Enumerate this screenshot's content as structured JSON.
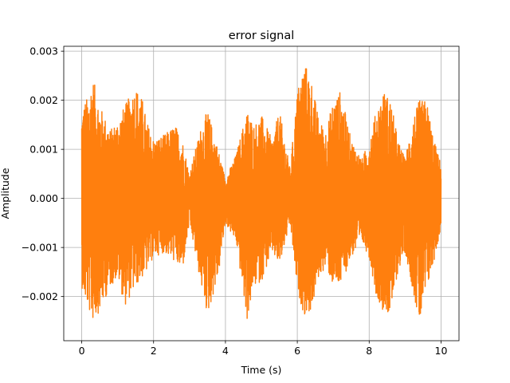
{
  "chart_data": {
    "type": "line",
    "title": "error signal",
    "xlabel": "Time (s)",
    "ylabel": "Amplitude",
    "xlim": [
      -0.5,
      10.5
    ],
    "ylim": [
      -0.0029,
      0.0031
    ],
    "grid": true,
    "x_ticks": [
      0,
      2,
      4,
      6,
      8,
      10
    ],
    "x_tick_labels": [
      "0",
      "2",
      "4",
      "6",
      "8",
      "10"
    ],
    "y_ticks": [
      -0.002,
      -0.001,
      0.0,
      0.001,
      0.002,
      0.003
    ],
    "y_tick_labels": [
      "−0.002",
      "−0.001",
      "0.000",
      "0.001",
      "0.002",
      "0.003"
    ],
    "series": [
      {
        "color": "#ff7f0e",
        "x_range": [
          0,
          10
        ],
        "envelope": {
          "x": [
            0,
            0.1,
            0.2,
            0.3,
            0.5,
            0.8,
            1.0,
            1.2,
            1.5,
            1.7,
            1.8,
            2.0,
            2.3,
            2.6,
            2.8,
            3.0,
            3.3,
            3.5,
            3.8,
            4.0,
            4.3,
            4.6,
            4.8,
            5.0,
            5.3,
            5.5,
            5.8,
            6.0,
            6.2,
            6.4,
            6.6,
            6.8,
            7.0,
            7.2,
            7.5,
            7.8,
            8.0,
            8.2,
            8.4,
            8.6,
            8.8,
            9.0,
            9.2,
            9.4,
            9.6,
            9.8,
            10.0
          ],
          "upper": [
            0.0018,
            0.002,
            0.0021,
            0.0025,
            0.0019,
            0.0014,
            0.0016,
            0.0019,
            0.0023,
            0.002,
            0.0016,
            0.0012,
            0.0013,
            0.0015,
            0.0012,
            0.0005,
            0.0014,
            0.0018,
            0.001,
            0.0004,
            0.0009,
            0.0018,
            0.0015,
            0.0017,
            0.0012,
            0.0018,
            0.0006,
            0.0022,
            0.0028,
            0.0024,
            0.0016,
            0.0014,
            0.002,
            0.0022,
            0.0012,
            0.0008,
            0.0012,
            0.0018,
            0.0022,
            0.002,
            0.0012,
            0.0008,
            0.0016,
            0.002,
            0.002,
            0.0012,
            0.0007
          ],
          "lower": [
            -0.0018,
            -0.0021,
            -0.0023,
            -0.0025,
            -0.0023,
            -0.0018,
            -0.0016,
            -0.0022,
            -0.0018,
            -0.0016,
            -0.0015,
            -0.0012,
            -0.0011,
            -0.0013,
            -0.0015,
            -0.0005,
            -0.0017,
            -0.0024,
            -0.0016,
            -0.0005,
            -0.0009,
            -0.0025,
            -0.0018,
            -0.0017,
            -0.0011,
            -0.0014,
            -0.0005,
            -0.0019,
            -0.0024,
            -0.0023,
            -0.0016,
            -0.0014,
            -0.0018,
            -0.0018,
            -0.0012,
            -0.0009,
            -0.0012,
            -0.002,
            -0.0023,
            -0.0024,
            -0.0015,
            -0.0011,
            -0.0018,
            -0.0026,
            -0.0019,
            -0.0013,
            -0.0006
          ]
        }
      }
    ]
  }
}
